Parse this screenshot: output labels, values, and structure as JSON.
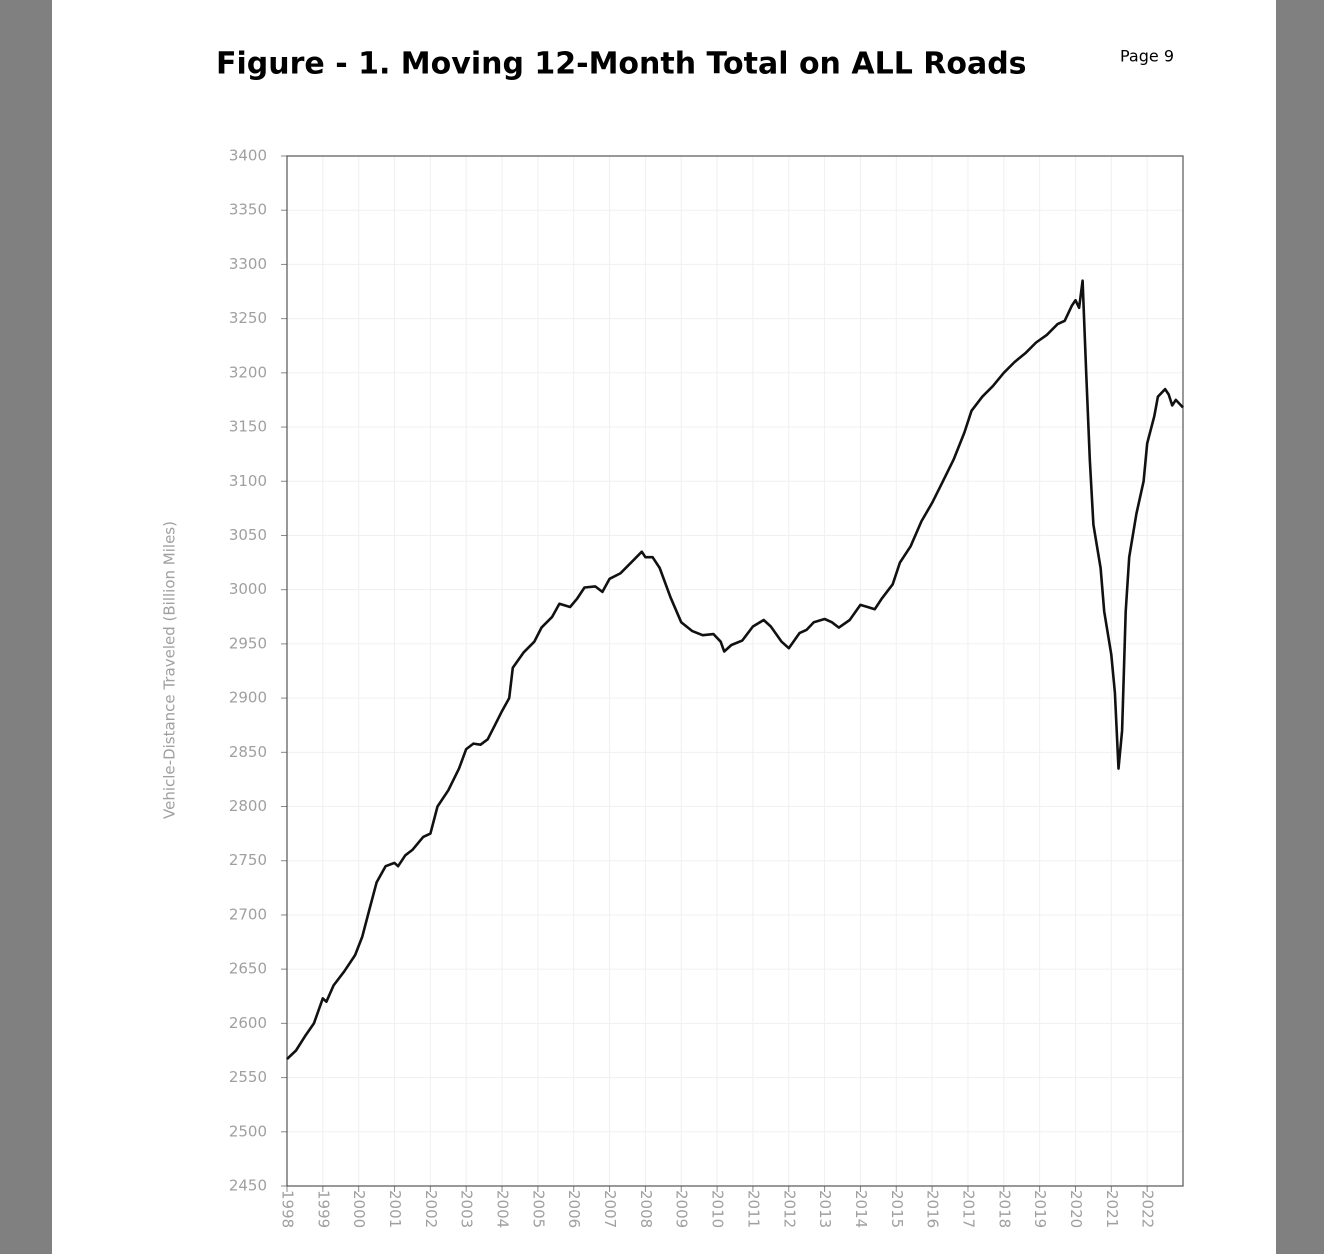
{
  "document": {
    "title": "Figure - 1. Moving 12-Month Total on ALL Roads",
    "page_label": "Page 9"
  },
  "chart_data": {
    "type": "line",
    "ylabel": "Vehicle-Distance Traveled (Billion Miles)",
    "color": "#111111",
    "x": [
      1998.0,
      1998.25,
      1998.5,
      1998.75,
      1999.0,
      1999.1,
      1999.3,
      1999.6,
      1999.9,
      2000.1,
      2000.3,
      2000.5,
      2000.75,
      2001.0,
      2001.1,
      2001.3,
      2001.5,
      2001.8,
      2002.0,
      2002.2,
      2002.5,
      2002.8,
      2003.0,
      2003.2,
      2003.4,
      2003.6,
      2003.8,
      2004.0,
      2004.2,
      2004.3,
      2004.6,
      2004.9,
      2005.1,
      2005.4,
      2005.6,
      2005.9,
      2006.1,
      2006.3,
      2006.6,
      2006.8,
      2007.0,
      2007.3,
      2007.6,
      2007.9,
      2008.0,
      2008.2,
      2008.4,
      2008.7,
      2009.0,
      2009.3,
      2009.6,
      2009.9,
      2010.1,
      2010.2,
      2010.4,
      2010.7,
      2011.0,
      2011.3,
      2011.5,
      2011.8,
      2012.0,
      2012.3,
      2012.5,
      2012.7,
      2013.0,
      2013.2,
      2013.4,
      2013.7,
      2014.0,
      2014.2,
      2014.4,
      2014.6,
      2014.9,
      2015.1,
      2015.4,
      2015.7,
      2016.0,
      2016.3,
      2016.6,
      2016.9,
      2017.1,
      2017.4,
      2017.7,
      2018.0,
      2018.3,
      2018.6,
      2018.9,
      2019.2,
      2019.5,
      2019.7,
      2019.9,
      2020.0,
      2020.1,
      2020.2,
      2020.3,
      2020.4,
      2020.5,
      2020.7,
      2020.8,
      2021.0,
      2021.1,
      2021.2,
      2021.3,
      2021.4,
      2021.5,
      2021.7,
      2021.9,
      2022.0,
      2022.2,
      2022.3,
      2022.5,
      2022.6,
      2022.7,
      2022.8,
      2023.0
    ],
    "values": [
      2567,
      2575,
      2588,
      2600,
      2623,
      2620,
      2635,
      2648,
      2663,
      2680,
      2705,
      2730,
      2745,
      2748,
      2745,
      2755,
      2760,
      2772,
      2775,
      2800,
      2815,
      2835,
      2853,
      2858,
      2857,
      2862,
      2875,
      2888,
      2900,
      2928,
      2942,
      2952,
      2965,
      2975,
      2987,
      2984,
      2992,
      3002,
      3003,
      2998,
      3010,
      3015,
      3025,
      3035,
      3030,
      3030,
      3020,
      2993,
      2970,
      2962,
      2958,
      2959,
      2952,
      2943,
      2949,
      2953,
      2966,
      2972,
      2966,
      2952,
      2946,
      2960,
      2963,
      2970,
      2973,
      2970,
      2965,
      2972,
      2986,
      2984,
      2982,
      2992,
      3005,
      3025,
      3040,
      3063,
      3080,
      3100,
      3120,
      3145,
      3165,
      3178,
      3188,
      3200,
      3210,
      3218,
      3228,
      3235,
      3245,
      3248,
      3262,
      3267,
      3260,
      3285,
      3200,
      3120,
      3060,
      3020,
      2980,
      2940,
      2905,
      2835,
      2870,
      2980,
      3030,
      3070,
      3100,
      3135,
      3160,
      3178,
      3185,
      3180,
      3170,
      3175,
      3168
    ],
    "xlim": [
      1998,
      2023
    ],
    "xticks": [
      1998,
      1999,
      2000,
      2001,
      2002,
      2003,
      2004,
      2005,
      2006,
      2007,
      2008,
      2009,
      2010,
      2011,
      2012,
      2013,
      2014,
      2015,
      2016,
      2017,
      2018,
      2019,
      2020,
      2021,
      2022
    ],
    "ylim": [
      2450,
      3400
    ],
    "yticks": [
      2450,
      2500,
      2550,
      2600,
      2650,
      2700,
      2750,
      2800,
      2850,
      2900,
      2950,
      3000,
      3050,
      3100,
      3150,
      3200,
      3250,
      3300,
      3350,
      3400
    ],
    "grid": true
  }
}
